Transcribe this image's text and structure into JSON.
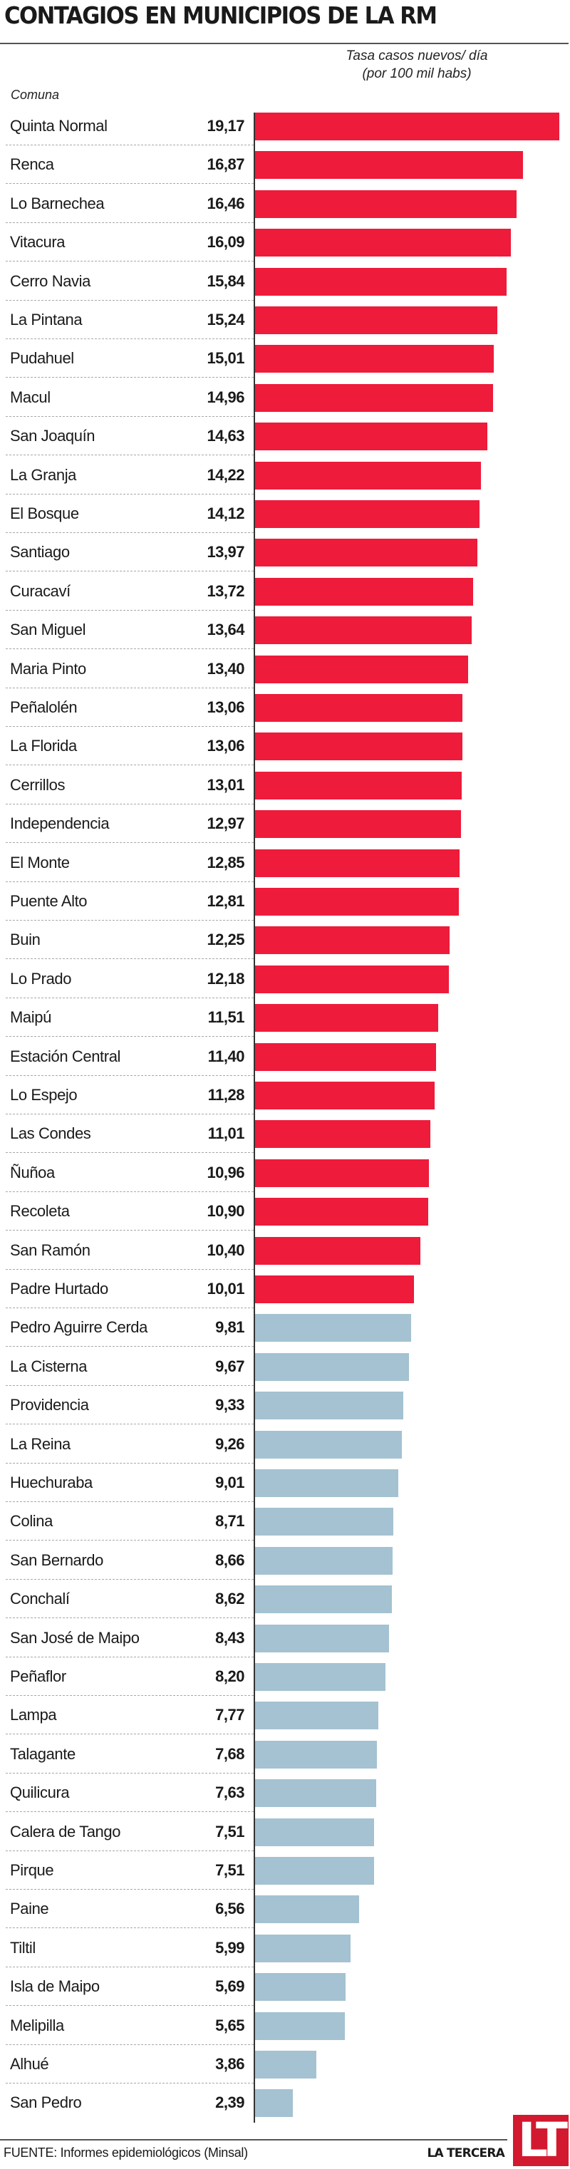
{
  "title": "CONTAGIOS EN MUNICIPIOS DE LA RM",
  "subtitle_line1": "Tasa casos nuevos/ día",
  "subtitle_line2": "(por 100 mil habs)",
  "column_label": "Comuna",
  "footer": {
    "source": "FUENTE: Informes epidemiológicos (Minsal)",
    "brand": "LA TERCERA",
    "logo_text": "LT"
  },
  "colors": {
    "high": "#ee1b3b",
    "low": "#a4c2d1",
    "logo": "#d3192f"
  },
  "chart_data": {
    "type": "bar",
    "orientation": "horizontal",
    "title": "CONTAGIOS EN MUNICIPIOS DE LA RM",
    "xlabel": "Tasa casos nuevos/ día (por 100 mil habs)",
    "ylabel": "Comuna",
    "threshold": 10,
    "grid": false,
    "categories": [
      "Quinta Normal",
      "Renca",
      "Lo Barnechea",
      "Vitacura",
      "Cerro Navia",
      "La Pintana",
      "Pudahuel",
      "Macul",
      "San Joaquín",
      "La Granja",
      "El Bosque",
      "Santiago",
      "Curacaví",
      "San Miguel",
      "Maria Pinto",
      "Peñalolén",
      "La Florida",
      "Cerrillos",
      "Independencia",
      "El Monte",
      "Puente Alto",
      "Buin",
      "Lo Prado",
      "Maipú",
      "Estación Central",
      "Lo Espejo",
      "Las Condes",
      "Ñuñoa",
      "Recoleta",
      "San Ramón",
      "Padre Hurtado",
      "Pedro Aguirre Cerda",
      "La Cisterna",
      "Providencia",
      "La Reina",
      "Huechuraba",
      "Colina",
      "San Bernardo",
      "Conchalí",
      "San José de Maipo",
      "Peñaflor",
      "Lampa",
      "Talagante",
      "Quilicura",
      "Calera de Tango",
      "Pirque",
      "Paine",
      "Tiltil",
      "Isla de Maipo",
      "Melipilla",
      "Alhué",
      "San Pedro"
    ],
    "values": [
      19.17,
      16.87,
      16.46,
      16.09,
      15.84,
      15.24,
      15.01,
      14.96,
      14.63,
      14.22,
      14.12,
      13.97,
      13.72,
      13.64,
      13.4,
      13.06,
      13.06,
      13.01,
      12.97,
      12.85,
      12.81,
      12.25,
      12.18,
      11.51,
      11.4,
      11.28,
      11.01,
      10.96,
      10.9,
      10.4,
      10.01,
      9.81,
      9.67,
      9.33,
      9.26,
      9.01,
      8.71,
      8.66,
      8.62,
      8.43,
      8.2,
      7.77,
      7.68,
      7.63,
      7.51,
      7.51,
      6.56,
      5.99,
      5.69,
      5.65,
      3.86,
      2.39
    ],
    "labels": [
      "19,17",
      "16,87",
      "16,46",
      "16,09",
      "15,84",
      "15,24",
      "15,01",
      "14,96",
      "14,63",
      "14,22",
      "14,12",
      "13,97",
      "13,72",
      "13,64",
      "13,40",
      "13,06",
      "13,06",
      "13,01",
      "12,97",
      "12,85",
      "12,81",
      "12,25",
      "12,18",
      "11,51",
      "11,40",
      "11,28",
      "11,01",
      "10,96",
      "10,90",
      "10,40",
      "10,01",
      "9,81",
      "9,67",
      "9,33",
      "9,26",
      "9,01",
      "8,71",
      "8,66",
      "8,62",
      "8,43",
      "8,20",
      "7,77",
      "7,68",
      "7,63",
      "7,51",
      "7,51",
      "6,56",
      "5,99",
      "5,69",
      "5,65",
      "3,86",
      "2,39"
    ]
  }
}
